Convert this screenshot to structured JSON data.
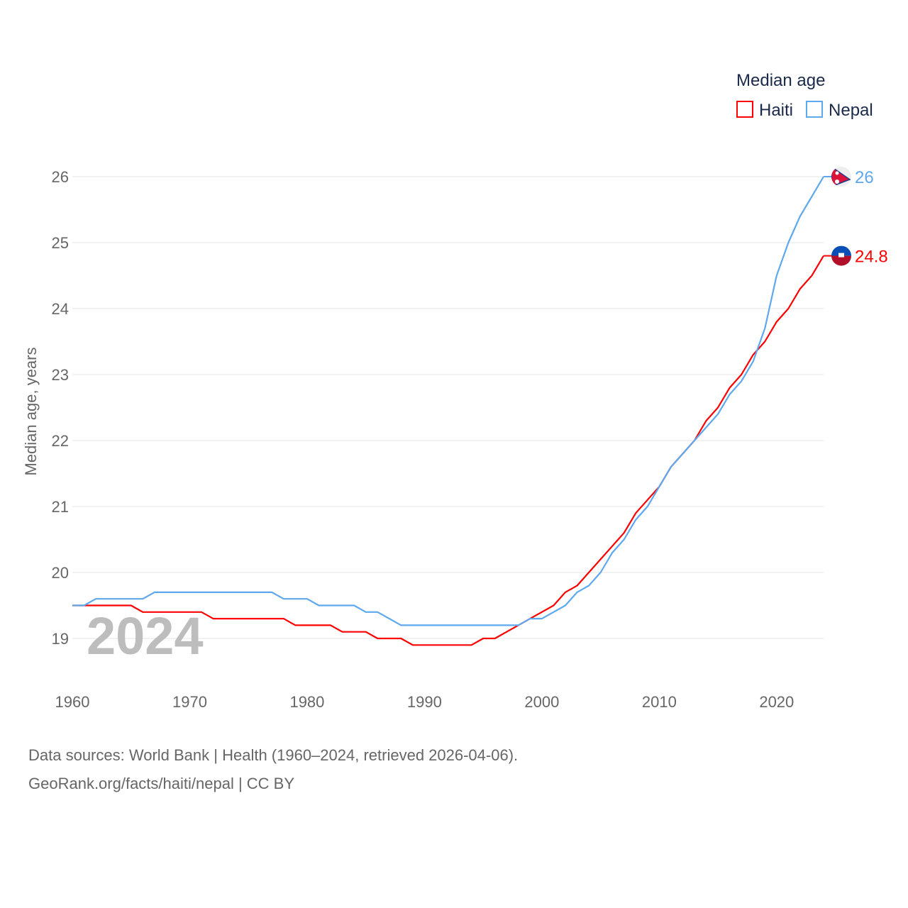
{
  "chart_data": {
    "type": "line",
    "title": "",
    "ylabel": "Median age, years",
    "xlabel": "",
    "xlim": [
      1960,
      2024
    ],
    "ylim": [
      18.4,
      26.2
    ],
    "xticks": [
      1960,
      1970,
      1980,
      1990,
      2000,
      2010,
      2020
    ],
    "yticks": [
      19,
      20,
      21,
      22,
      23,
      24,
      25,
      26
    ],
    "grid": true,
    "legend_title": "Median age",
    "legend_position": "top-right",
    "year_watermark": "2024",
    "x": [
      1960,
      1961,
      1962,
      1963,
      1964,
      1965,
      1966,
      1967,
      1968,
      1969,
      1970,
      1971,
      1972,
      1973,
      1974,
      1975,
      1976,
      1977,
      1978,
      1979,
      1980,
      1981,
      1982,
      1983,
      1984,
      1985,
      1986,
      1987,
      1988,
      1989,
      1990,
      1991,
      1992,
      1993,
      1994,
      1995,
      1996,
      1997,
      1998,
      1999,
      2000,
      2001,
      2002,
      2003,
      2004,
      2005,
      2006,
      2007,
      2008,
      2009,
      2010,
      2011,
      2012,
      2013,
      2014,
      2015,
      2016,
      2017,
      2018,
      2019,
      2020,
      2021,
      2022,
      2023,
      2024
    ],
    "series": [
      {
        "name": "Haiti",
        "color": "#ff0000",
        "end_label": "24.8",
        "flag": "haiti-flag",
        "values": [
          19.5,
          19.5,
          19.5,
          19.5,
          19.5,
          19.5,
          19.4,
          19.4,
          19.4,
          19.4,
          19.4,
          19.4,
          19.3,
          19.3,
          19.3,
          19.3,
          19.3,
          19.3,
          19.3,
          19.2,
          19.2,
          19.2,
          19.2,
          19.1,
          19.1,
          19.1,
          19.0,
          19.0,
          19.0,
          18.9,
          18.9,
          18.9,
          18.9,
          18.9,
          18.9,
          19.0,
          19.0,
          19.1,
          19.2,
          19.3,
          19.4,
          19.5,
          19.7,
          19.8,
          20.0,
          20.2,
          20.4,
          20.6,
          20.9,
          21.1,
          21.3,
          21.6,
          21.8,
          22.0,
          22.3,
          22.5,
          22.8,
          23.0,
          23.3,
          23.5,
          23.8,
          24.0,
          24.3,
          24.5,
          24.8
        ]
      },
      {
        "name": "Nepal",
        "color": "#5ea8ee",
        "end_label": "26",
        "flag": "nepal-flag",
        "values": [
          19.5,
          19.5,
          19.6,
          19.6,
          19.6,
          19.6,
          19.6,
          19.7,
          19.7,
          19.7,
          19.7,
          19.7,
          19.7,
          19.7,
          19.7,
          19.7,
          19.7,
          19.7,
          19.6,
          19.6,
          19.6,
          19.5,
          19.5,
          19.5,
          19.5,
          19.4,
          19.4,
          19.3,
          19.2,
          19.2,
          19.2,
          19.2,
          19.2,
          19.2,
          19.2,
          19.2,
          19.2,
          19.2,
          19.2,
          19.3,
          19.3,
          19.4,
          19.5,
          19.7,
          19.8,
          20.0,
          20.3,
          20.5,
          20.8,
          21.0,
          21.3,
          21.6,
          21.8,
          22.0,
          22.2,
          22.4,
          22.7,
          22.9,
          23.2,
          23.7,
          24.5,
          25.0,
          25.4,
          25.7,
          26.0
        ]
      }
    ]
  },
  "source": {
    "line1": "Data sources: World Bank | Health (1960–2024, retrieved 2026-04-06).",
    "line2": "GeoRank.org/facts/haiti/nepal | CC BY"
  }
}
